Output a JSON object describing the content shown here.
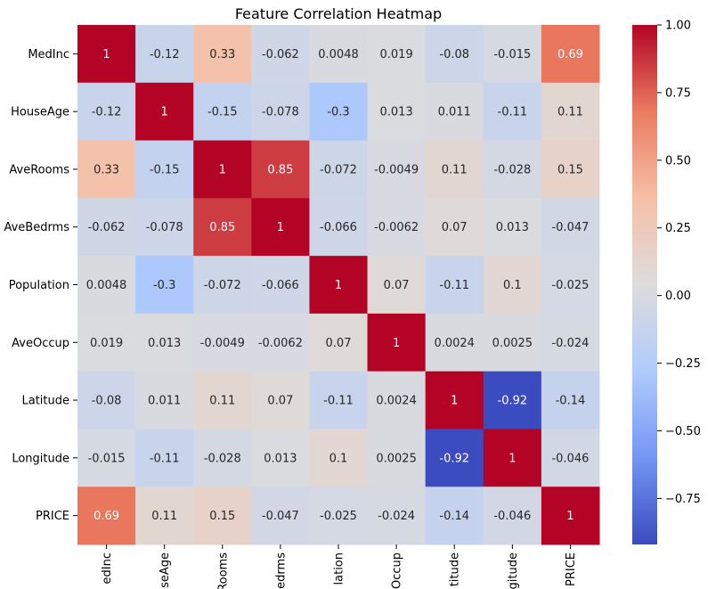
{
  "chart_data": {
    "type": "heatmap",
    "title": "Feature Correlation Heatmap",
    "xlabel": "",
    "ylabel": "",
    "rows": [
      "MedInc",
      "HouseAge",
      "AveRooms",
      "AveBedrms",
      "Population",
      "AveOccup",
      "Latitude",
      "Longitude",
      "PRICE"
    ],
    "columns": [
      "MedInc",
      "HouseAge",
      "AveRooms",
      "AveBedrms",
      "Population",
      "AveOccup",
      "Latitude",
      "Longitude",
      "PRICE"
    ],
    "column_tick_labels_visible": [
      "edInc",
      "seAge",
      "Rooms",
      "edrms",
      "lation",
      "Occup",
      "titude",
      "gitude",
      "PRICE"
    ],
    "values": [
      [
        1,
        -0.12,
        0.33,
        -0.062,
        0.0048,
        0.019,
        -0.08,
        -0.015,
        0.69
      ],
      [
        -0.12,
        1,
        -0.15,
        -0.078,
        -0.3,
        0.013,
        0.011,
        -0.11,
        0.11
      ],
      [
        0.33,
        -0.15,
        1,
        0.85,
        -0.072,
        -0.0049,
        0.11,
        -0.028,
        0.15
      ],
      [
        -0.062,
        -0.078,
        0.85,
        1,
        -0.066,
        -0.0062,
        0.07,
        0.013,
        -0.047
      ],
      [
        0.0048,
        -0.3,
        -0.072,
        -0.066,
        1,
        0.07,
        -0.11,
        0.1,
        -0.025
      ],
      [
        0.019,
        0.013,
        -0.0049,
        -0.0062,
        0.07,
        1,
        0.0024,
        0.0025,
        -0.024
      ],
      [
        -0.08,
        0.011,
        0.11,
        0.07,
        -0.11,
        0.0024,
        1,
        -0.92,
        -0.14
      ],
      [
        -0.015,
        -0.11,
        -0.028,
        0.013,
        0.1,
        0.0025,
        -0.92,
        1,
        -0.046
      ],
      [
        0.69,
        0.11,
        0.15,
        -0.047,
        -0.025,
        -0.024,
        -0.14,
        -0.046,
        1
      ]
    ],
    "colormap": "coolwarm",
    "colormap_stops": [
      "#3b4cc0",
      "#7396f5",
      "#b0cbfc",
      "#dddcdc",
      "#f6bfa6",
      "#ea7b60",
      "#b40426"
    ],
    "colorbar": {
      "range": [
        -0.92,
        1.0
      ],
      "ticks": [
        1.0,
        0.75,
        0.5,
        0.25,
        0.0,
        -0.25,
        -0.5,
        -0.75
      ],
      "tick_labels": [
        "1.00",
        "0.75",
        "0.50",
        "0.25",
        "0.00",
        "−0.25",
        "−0.50",
        "−0.75"
      ],
      "placement": "right"
    },
    "annotations": "cell values printed in each cell",
    "grid": false,
    "legend": "colorbar-right"
  }
}
